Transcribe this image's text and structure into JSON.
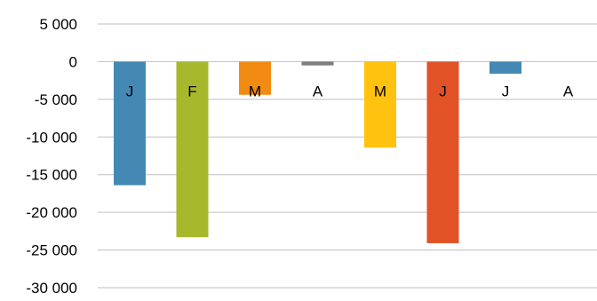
{
  "chart_data": {
    "type": "bar",
    "title": "",
    "xlabel": "",
    "ylabel": "",
    "categories": [
      "J",
      "F",
      "M",
      "A",
      "M",
      "J",
      "J",
      "A"
    ],
    "values": [
      -16400,
      -23300,
      -4400,
      -500,
      -11400,
      -24100,
      -1600,
      0
    ],
    "colors": [
      "#4389b4",
      "#a6b92d",
      "#f28b12",
      "#7f7f7f",
      "#ffc20e",
      "#e15226",
      "#4389b4",
      "#4389b4"
    ],
    "ylim": [
      -30000,
      5000
    ],
    "yticks": [
      5000,
      0,
      -5000,
      -10000,
      -15000,
      -20000,
      -25000,
      -30000
    ],
    "ytick_labels": [
      "5 000",
      "0",
      "-5 000",
      "-10 000",
      "-15 000",
      "-20 000",
      "-25 000",
      "-30 000"
    ],
    "grid": true,
    "legend": "none",
    "category_label_placement": "inside-bars-below-zero-line"
  }
}
